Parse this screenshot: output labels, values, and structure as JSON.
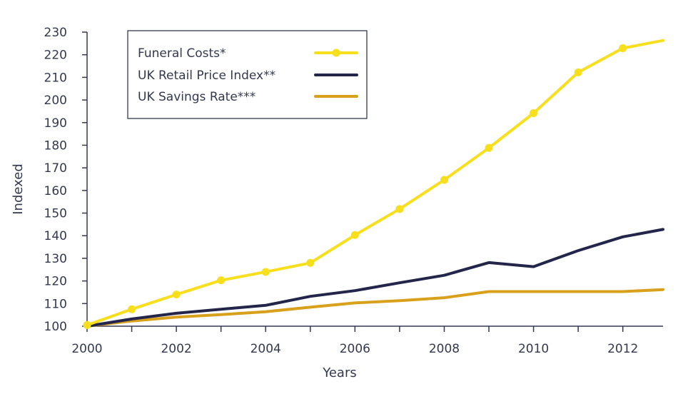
{
  "chart_data": {
    "type": "line",
    "title": "",
    "xlabel": "Years",
    "ylabel": "Indexed",
    "xlim": [
      2000,
      2012.9
    ],
    "ylim": [
      100,
      230
    ],
    "x_ticks": [
      2000,
      2002,
      2004,
      2006,
      2008,
      2010,
      2012
    ],
    "y_ticks": [
      100,
      110,
      120,
      130,
      140,
      150,
      160,
      170,
      180,
      190,
      200,
      210,
      220,
      230
    ],
    "x": [
      2000,
      2001,
      2002,
      2003,
      2004,
      2005,
      2006,
      2007,
      2008,
      2009,
      2010,
      2011,
      2012,
      2012.9
    ],
    "grid": false,
    "legend_position": "top-left",
    "series": [
      {
        "name": "Funeral Costs*",
        "color": "#f7df1e",
        "markers": true,
        "values": [
          100.5,
          107.5,
          114,
          120.3,
          124,
          128,
          140.3,
          151.8,
          164.7,
          178.8,
          194.2,
          212.2,
          222.9,
          226.3
        ]
      },
      {
        "name": "UK Retail Price Index**",
        "color": "#23264a",
        "markers": false,
        "values": [
          100,
          103.2,
          105.7,
          107.5,
          109.2,
          113.2,
          115.7,
          119.2,
          122.5,
          128.1,
          126.3,
          133.4,
          139.5,
          142.8
        ]
      },
      {
        "name": "UK Savings Rate***",
        "color": "#d9a01c",
        "markers": false,
        "values": [
          100,
          102.3,
          104,
          105.1,
          106.4,
          108.4,
          110.3,
          111.3,
          112.6,
          115.3,
          115.3,
          115.3,
          115.3,
          116.2
        ]
      }
    ]
  }
}
